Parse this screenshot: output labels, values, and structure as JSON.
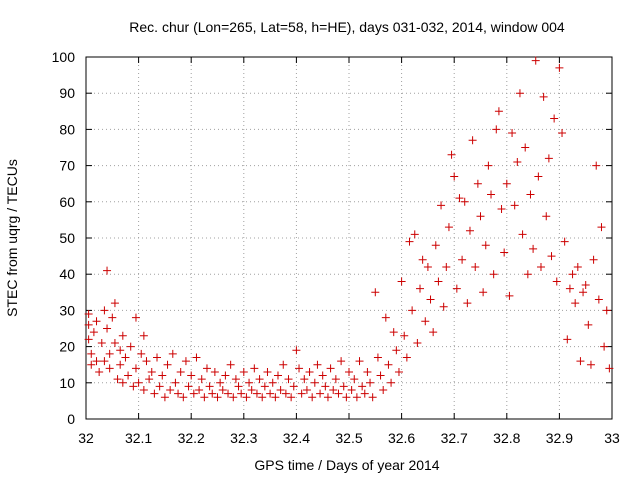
{
  "colors": {
    "background": "#ffffff",
    "series": "#cc0000",
    "grid": "#a0a0a0",
    "axes": "#000000"
  },
  "chart_data": {
    "type": "scatter",
    "title": "Rec. chur (Lon=265, Lat=58, h=HE), days 031-032, 2014, window 004",
    "xlabel": "GPS time / Days of year 2014",
    "ylabel": "STEC from uqrg / TECUs",
    "xlim": [
      32,
      33
    ],
    "ylim": [
      0,
      100
    ],
    "x_ticks": [
      32,
      32.1,
      32.2,
      32.3,
      32.4,
      32.5,
      32.6,
      32.7,
      32.8,
      32.9,
      33
    ],
    "x_tick_labels": [
      "32",
      "32.1",
      "32.2",
      "32.3",
      "32.4",
      "32.5",
      "32.6",
      "32.7",
      "32.8",
      "32.9",
      "33"
    ],
    "y_ticks": [
      0,
      10,
      20,
      30,
      40,
      50,
      60,
      70,
      80,
      90,
      100
    ],
    "y_tick_labels": [
      "0",
      "10",
      "20",
      "30",
      "40",
      "50",
      "60",
      "70",
      "80",
      "90",
      "100"
    ],
    "grid": true,
    "marker": "+",
    "series": [
      {
        "points": [
          [
            32.005,
            29
          ],
          [
            32.005,
            26
          ],
          [
            32.005,
            22
          ],
          [
            32.01,
            18
          ],
          [
            32.01,
            15
          ],
          [
            32.015,
            24
          ],
          [
            32.02,
            27
          ],
          [
            32.02,
            16
          ],
          [
            32.025,
            13
          ],
          [
            32.03,
            21
          ],
          [
            32.035,
            30
          ],
          [
            32.035,
            16
          ],
          [
            32.04,
            41
          ],
          [
            32.04,
            25
          ],
          [
            32.045,
            18
          ],
          [
            32.045,
            14
          ],
          [
            32.05,
            28
          ],
          [
            32.055,
            32
          ],
          [
            32.055,
            21
          ],
          [
            32.06,
            11
          ],
          [
            32.065,
            19
          ],
          [
            32.065,
            15
          ],
          [
            32.07,
            23
          ],
          [
            32.07,
            10
          ],
          [
            32.075,
            17
          ],
          [
            32.08,
            12
          ],
          [
            32.085,
            20
          ],
          [
            32.09,
            9
          ],
          [
            32.095,
            28
          ],
          [
            32.095,
            14
          ],
          [
            32.1,
            10
          ],
          [
            32.105,
            18
          ],
          [
            32.11,
            23
          ],
          [
            32.11,
            8
          ],
          [
            32.115,
            16
          ],
          [
            32.12,
            11
          ],
          [
            32.125,
            13
          ],
          [
            32.13,
            7
          ],
          [
            32.135,
            17
          ],
          [
            32.14,
            9
          ],
          [
            32.145,
            12
          ],
          [
            32.15,
            6
          ],
          [
            32.155,
            15
          ],
          [
            32.16,
            8
          ],
          [
            32.165,
            18
          ],
          [
            32.17,
            10
          ],
          [
            32.175,
            7
          ],
          [
            32.18,
            13
          ],
          [
            32.185,
            6
          ],
          [
            32.19,
            16
          ],
          [
            32.195,
            9
          ],
          [
            32.2,
            12
          ],
          [
            32.205,
            7
          ],
          [
            32.21,
            17
          ],
          [
            32.215,
            8
          ],
          [
            32.22,
            11
          ],
          [
            32.225,
            6
          ],
          [
            32.23,
            14
          ],
          [
            32.235,
            9
          ],
          [
            32.24,
            7
          ],
          [
            32.245,
            13
          ],
          [
            32.25,
            6
          ],
          [
            32.255,
            10
          ],
          [
            32.26,
            8
          ],
          [
            32.265,
            12
          ],
          [
            32.27,
            7
          ],
          [
            32.275,
            15
          ],
          [
            32.28,
            6
          ],
          [
            32.285,
            11
          ],
          [
            32.29,
            9
          ],
          [
            32.295,
            7
          ],
          [
            32.3,
            13
          ],
          [
            32.305,
            6
          ],
          [
            32.31,
            10
          ],
          [
            32.315,
            8
          ],
          [
            32.32,
            14
          ],
          [
            32.325,
            7
          ],
          [
            32.33,
            11
          ],
          [
            32.335,
            6
          ],
          [
            32.34,
            9
          ],
          [
            32.345,
            13
          ],
          [
            32.35,
            7
          ],
          [
            32.355,
            10
          ],
          [
            32.36,
            6
          ],
          [
            32.365,
            12
          ],
          [
            32.37,
            8
          ],
          [
            32.375,
            15
          ],
          [
            32.38,
            7
          ],
          [
            32.385,
            11
          ],
          [
            32.39,
            6
          ],
          [
            32.395,
            9
          ],
          [
            32.4,
            19
          ],
          [
            32.405,
            14
          ],
          [
            32.41,
            7
          ],
          [
            32.415,
            11
          ],
          [
            32.42,
            8
          ],
          [
            32.425,
            13
          ],
          [
            32.43,
            6
          ],
          [
            32.435,
            10
          ],
          [
            32.44,
            15
          ],
          [
            32.445,
            7
          ],
          [
            32.45,
            12
          ],
          [
            32.455,
            9
          ],
          [
            32.46,
            6
          ],
          [
            32.465,
            14
          ],
          [
            32.47,
            8
          ],
          [
            32.475,
            11
          ],
          [
            32.48,
            7
          ],
          [
            32.485,
            16
          ],
          [
            32.49,
            9
          ],
          [
            32.495,
            6
          ],
          [
            32.5,
            13
          ],
          [
            32.505,
            8
          ],
          [
            32.51,
            11
          ],
          [
            32.515,
            6
          ],
          [
            32.52,
            16
          ],
          [
            32.525,
            9
          ],
          [
            32.53,
            7
          ],
          [
            32.535,
            13
          ],
          [
            32.54,
            10
          ],
          [
            32.545,
            6
          ],
          [
            32.55,
            35
          ],
          [
            32.555,
            17
          ],
          [
            32.56,
            12
          ],
          [
            32.565,
            8
          ],
          [
            32.57,
            28
          ],
          [
            32.575,
            15
          ],
          [
            32.58,
            10
          ],
          [
            32.585,
            24
          ],
          [
            32.59,
            19
          ],
          [
            32.595,
            13
          ],
          [
            32.6,
            38
          ],
          [
            32.605,
            23
          ],
          [
            32.61,
            17
          ],
          [
            32.615,
            49
          ],
          [
            32.62,
            30
          ],
          [
            32.625,
            51
          ],
          [
            32.63,
            21
          ],
          [
            32.635,
            36
          ],
          [
            32.64,
            44
          ],
          [
            32.645,
            27
          ],
          [
            32.65,
            42
          ],
          [
            32.655,
            33
          ],
          [
            32.66,
            24
          ],
          [
            32.665,
            48
          ],
          [
            32.67,
            38
          ],
          [
            32.675,
            59
          ],
          [
            32.68,
            31
          ],
          [
            32.685,
            42
          ],
          [
            32.69,
            53
          ],
          [
            32.695,
            73
          ],
          [
            32.7,
            67
          ],
          [
            32.705,
            36
          ],
          [
            32.71,
            61
          ],
          [
            32.715,
            44
          ],
          [
            32.72,
            60
          ],
          [
            32.725,
            32
          ],
          [
            32.73,
            52
          ],
          [
            32.735,
            77
          ],
          [
            32.74,
            42
          ],
          [
            32.745,
            65
          ],
          [
            32.75,
            56
          ],
          [
            32.755,
            35
          ],
          [
            32.76,
            48
          ],
          [
            32.765,
            70
          ],
          [
            32.77,
            62
          ],
          [
            32.775,
            40
          ],
          [
            32.78,
            80
          ],
          [
            32.785,
            85
          ],
          [
            32.79,
            58
          ],
          [
            32.795,
            46
          ],
          [
            32.8,
            65
          ],
          [
            32.805,
            34
          ],
          [
            32.81,
            79
          ],
          [
            32.815,
            59
          ],
          [
            32.82,
            71
          ],
          [
            32.825,
            90
          ],
          [
            32.83,
            51
          ],
          [
            32.835,
            75
          ],
          [
            32.84,
            40
          ],
          [
            32.845,
            62
          ],
          [
            32.85,
            47
          ],
          [
            32.855,
            99
          ],
          [
            32.86,
            67
          ],
          [
            32.865,
            42
          ],
          [
            32.87,
            89
          ],
          [
            32.875,
            56
          ],
          [
            32.88,
            72
          ],
          [
            32.885,
            45
          ],
          [
            32.89,
            83
          ],
          [
            32.895,
            38
          ],
          [
            32.9,
            97
          ],
          [
            32.905,
            79
          ],
          [
            32.91,
            49
          ],
          [
            32.915,
            22
          ],
          [
            32.92,
            36
          ],
          [
            32.925,
            40
          ],
          [
            32.93,
            32
          ],
          [
            32.935,
            42
          ],
          [
            32.94,
            16
          ],
          [
            32.945,
            35
          ],
          [
            32.95,
            37
          ],
          [
            32.955,
            26
          ],
          [
            32.96,
            15
          ],
          [
            32.965,
            44
          ],
          [
            32.97,
            70
          ],
          [
            32.975,
            33
          ],
          [
            32.98,
            53
          ],
          [
            32.985,
            20
          ],
          [
            32.99,
            30
          ],
          [
            32.995,
            14
          ]
        ]
      }
    ]
  }
}
